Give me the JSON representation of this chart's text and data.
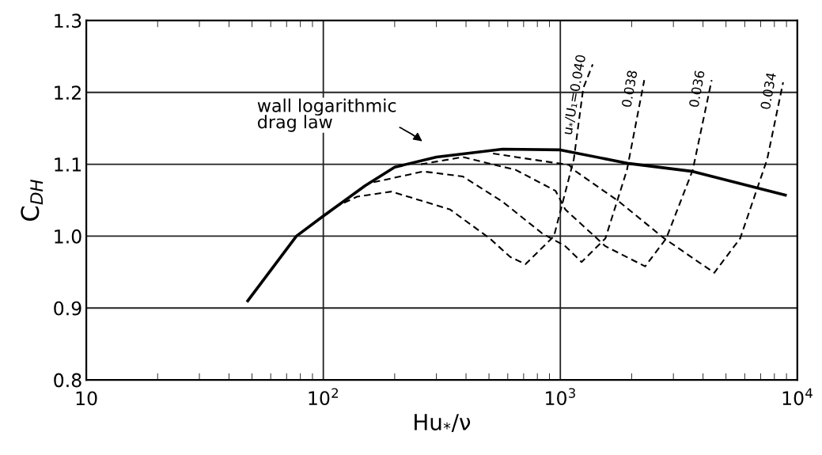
{
  "chart_data": {
    "type": "line",
    "xlabel": "Hu$_{*}$/ν",
    "ylabel": "C$_{DH}$",
    "log": "x",
    "grid": true,
    "legend": false,
    "marker": "none",
    "xlim": [
      10,
      10000
    ],
    "xticks": [
      10,
      {
        "value": 100,
        "label": "10$^{2}$"
      },
      {
        "value": 1000,
        "label": "10$^{3}$"
      },
      {
        "value": 10000,
        "label": "10$^{4}$"
      }
    ],
    "ylim": [
      0.8,
      1.3
    ],
    "yticks": [
      {
        "value": 0.8,
        "label": "0.8"
      },
      {
        "value": 0.9,
        "label": "0.9"
      },
      {
        "value": 1.0,
        "label": "1.0"
      },
      {
        "value": 1.1,
        "label": "1.1"
      },
      {
        "value": 1.2,
        "label": "1.2"
      },
      {
        "value": 1.3,
        "label": "1.3"
      }
    ],
    "annotations": [
      "wall logarithmic\ndrag law"
    ],
    "series": [
      {
        "color": "#000000",
        "line_style": "solid",
        "x": [
          48,
          77,
          100,
          150,
          200,
          300,
          570,
          1000,
          1950,
          3620,
          8900
        ],
        "values": [
          0.91,
          1.0,
          1.028,
          1.07,
          1.096,
          1.11,
          1.121,
          1.12,
          1.101,
          1.09,
          1.057
        ]
      },
      {
        "name": "u$_{*}$/U₁=0.040",
        "color": "#000000",
        "line_style": "dashed",
        "x": [
          103,
          113,
          139,
          194,
          343,
          503,
          615,
          713,
          940,
          1140,
          1250,
          1370
        ],
        "values": [
          1.03,
          1.041,
          1.055,
          1.062,
          1.037,
          0.997,
          0.971,
          0.961,
          1.0,
          1.107,
          1.206,
          1.239
        ]
      },
      {
        "name": "0.038",
        "color": "#000000",
        "line_style": "dashed",
        "x": [
          163,
          264,
          388,
          570,
          837,
          1050,
          1230,
          1550,
          1910,
          2260
        ],
        "values": [
          1.075,
          1.09,
          1.083,
          1.048,
          1.004,
          0.986,
          0.964,
          0.997,
          1.092,
          1.217
        ]
      },
      {
        "name": "0.036",
        "color": "#000000",
        "line_style": "dashed",
        "x": [
          258,
          388,
          650,
          955,
          1050,
          1550,
          2280,
          2800,
          3620,
          4350
        ],
        "values": [
          1.1,
          1.11,
          1.092,
          1.063,
          1.037,
          0.986,
          0.958,
          0.997,
          1.092,
          1.217
        ]
      },
      {
        "name": "0.034",
        "color": "#000000",
        "line_style": "dashed",
        "x": [
          520,
          650,
          1090,
          1140,
          1770,
          2740,
          4460,
          5740,
          7460,
          8710
        ],
        "values": [
          1.115,
          1.11,
          1.099,
          1.092,
          1.048,
          0.997,
          0.949,
          0.997,
          1.107,
          1.214
        ]
      }
    ]
  }
}
